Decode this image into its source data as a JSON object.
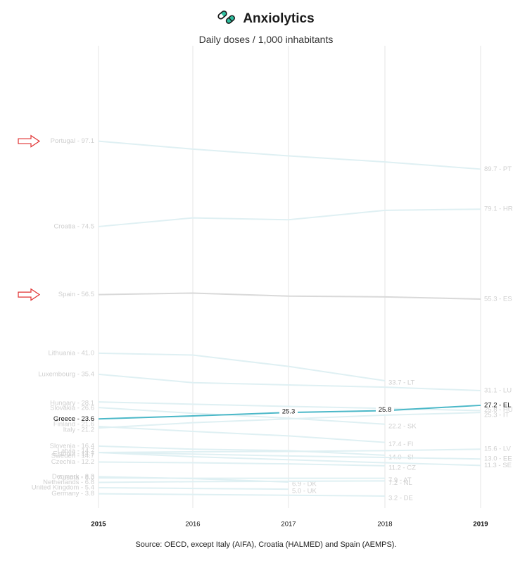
{
  "header": {
    "title": "Anxiolytics",
    "subtitle": "Daily doses / 1,000 inhabitants",
    "icon": "pills-icon"
  },
  "footer": {
    "source": "Source: OECD, except Italy (AIFA), Croatia (HALMED) and Spain (AEMPS)."
  },
  "colors": {
    "grid": "#e6e6e6",
    "faint_line": "#dff0f3",
    "faint_text": "#cfcfcf",
    "highlight": "#4bb8c8",
    "spain_line": "#d9d9d9",
    "arrow": "#e03030"
  },
  "chart_data": {
    "type": "line",
    "x": [
      "2015",
      "2016",
      "2017",
      "2018",
      "2019"
    ],
    "highlight_series": "Greece",
    "annotated_countries": [
      "Portugal",
      "Spain"
    ],
    "series": [
      {
        "name": "Portugal",
        "code": "PT",
        "values": [
          97.1,
          95.0,
          93.2,
          91.6,
          89.7
        ],
        "start_label": "Portugal - 97.1",
        "end_label": "89.7 - PT"
      },
      {
        "name": "Croatia",
        "code": "HR",
        "values": [
          74.5,
          76.8,
          76.3,
          78.8,
          79.1
        ],
        "start_label": "Croatia - 74.5",
        "end_label": "79.1 - HR"
      },
      {
        "name": "Spain",
        "code": "ES",
        "values": [
          56.5,
          56.9,
          56.1,
          55.9,
          55.3
        ],
        "start_label": "Spain - 56.5",
        "end_label": "55.3 - ES"
      },
      {
        "name": "Lithuania",
        "code": "LT",
        "values": [
          41.0,
          40.5,
          37.5,
          33.7,
          null
        ],
        "start_label": "Lithuania - 41.0",
        "end_label": "33.7 - LT",
        "end_label_year": "2018"
      },
      {
        "name": "Luxembourg",
        "code": "LU",
        "values": [
          35.4,
          33.2,
          32.6,
          32.0,
          31.1
        ],
        "start_label": "Luxembourg - 35.4",
        "end_label": "31.1 - LU"
      },
      {
        "name": "Hungary",
        "code": "HU",
        "values": [
          28.1,
          27.5,
          26.9,
          26.4,
          25.8
        ],
        "start_label": "Hungary - 28.1",
        "end_label": "25.8 - HU"
      },
      {
        "name": "Slovakia",
        "code": "SK",
        "values": [
          26.6,
          25.1,
          23.8,
          22.2,
          null
        ],
        "start_label": "Slovakia - 26.6",
        "end_label": "22.2 - SK",
        "end_label_year": "2018"
      },
      {
        "name": "Greece",
        "code": "EL",
        "values": [
          23.6,
          24.4,
          25.3,
          25.8,
          27.2
        ],
        "start_label": "Greece - 23.6",
        "end_label": "27.2 - EL",
        "point_labels": [
          "",
          "",
          "25.3",
          "25.8",
          ""
        ]
      },
      {
        "name": "Italy",
        "code": "IT",
        "values": [
          21.2,
          22.6,
          23.6,
          24.6,
          25.3
        ],
        "start_label": "Italy - 21.2",
        "end_label": "25.3 - IT"
      },
      {
        "name": "Finland",
        "code": "FI",
        "values": [
          21.6,
          20.3,
          19.1,
          17.4,
          null
        ],
        "start_label": "Finland - 21.6",
        "end_label": "17.4 - FI",
        "end_label_year": "2018"
      },
      {
        "name": "Slovenia",
        "code": "SI",
        "values": [
          16.4,
          15.6,
          15.2,
          14.0,
          null
        ],
        "start_label": "Slovenia - 16.4",
        "end_label": "14.0 - SI",
        "end_label_year": "2018"
      },
      {
        "name": "Latvia",
        "code": "LV",
        "values": [
          14.7,
          14.9,
          15.0,
          15.2,
          15.6
        ],
        "start_label": "Latvia - 14.7",
        "end_label": "15.6 - LV"
      },
      {
        "name": "Estonia",
        "code": "EE",
        "values": [
          14.7,
          14.3,
          13.8,
          13.4,
          13.0
        ],
        "start_label": "Estonia - 14.7",
        "end_label": "13.0 - EE"
      },
      {
        "name": "Sweden",
        "code": "SE",
        "values": [
          14.7,
          13.6,
          12.8,
          12.0,
          11.3
        ],
        "start_label": "Sweden - 14.7",
        "end_label": "11.3 - SE"
      },
      {
        "name": "Czechia",
        "code": "CZ",
        "values": [
          12.2,
          12.0,
          11.7,
          11.2,
          null
        ],
        "start_label": "Czechia - 12.2",
        "end_label": "11.2 - CZ",
        "end_label_year": "2018"
      },
      {
        "name": "Denmark",
        "code": "DK",
        "values": [
          8.3,
          7.8,
          6.9,
          null,
          null
        ],
        "start_label": "Denmark - 8.3",
        "end_label": "6.9 - DK",
        "end_label_year": "2017"
      },
      {
        "name": "Austria",
        "code": "AT",
        "values": [
          8.0,
          7.9,
          7.9,
          7.9,
          null
        ],
        "start_label": "Austria - 8.0",
        "end_label": "7.9 - AT",
        "end_label_year": "2018"
      },
      {
        "name": "Netherlands",
        "code": "NL",
        "values": [
          6.8,
          7.0,
          7.1,
          7.2,
          null
        ],
        "start_label": "Netherlands - 6.8",
        "end_label": "7.2 - NL",
        "end_label_year": "2018"
      },
      {
        "name": "United Kingdom",
        "code": "UK",
        "values": [
          5.4,
          5.2,
          5.0,
          null,
          null
        ],
        "start_label": "United Kingdom - 5.4",
        "end_label": "5.0 - UK",
        "end_label_year": "2017"
      },
      {
        "name": "Germany",
        "code": "DE",
        "values": [
          3.8,
          3.6,
          3.4,
          3.2,
          null
        ],
        "start_label": "Germany - 3.8",
        "end_label": "3.2 - DE",
        "end_label_year": "2018"
      }
    ]
  }
}
